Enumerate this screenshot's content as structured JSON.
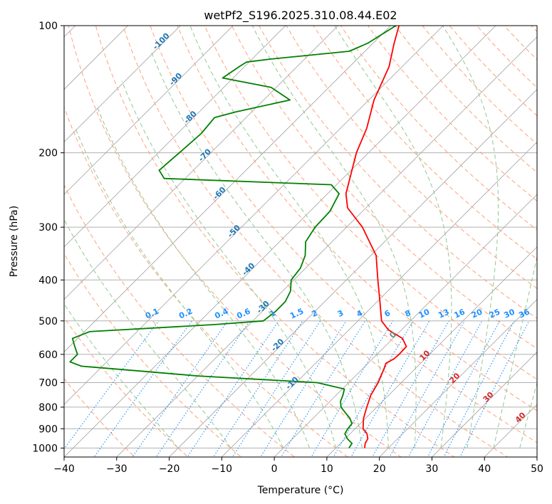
{
  "chart_data": {
    "type": "line",
    "title": "wetPf2_S196.2025.310.08.44.E02",
    "xlabel": "Temperature (°C)",
    "ylabel": "Pressure (hPa)",
    "xlim": [
      -40,
      50
    ],
    "ylim": [
      1050,
      100
    ],
    "y_scale": "log",
    "grid": true,
    "x_ticks": [
      -40,
      -30,
      -20,
      -10,
      0,
      10,
      20,
      30,
      40,
      50
    ],
    "y_ticks": [
      1000,
      900,
      800,
      700,
      600,
      500,
      400,
      300,
      200,
      100
    ],
    "skew": true,
    "colors": {
      "temperature": "#ff0000",
      "dewpoint": "#008000",
      "isotherm": "#aaaaaa",
      "dry_adiabat": "#ffa07a",
      "moist_adiabat": "#90c890",
      "mixing_ratio": "#1e90ff"
    },
    "series": [
      {
        "points": [
          [
            1000,
            15.5
          ],
          [
            975,
            14.7
          ],
          [
            950,
            14.3
          ],
          [
            925,
            13.2
          ],
          [
            900,
            11.5
          ],
          [
            850,
            9.6
          ],
          [
            800,
            8.1
          ],
          [
            750,
            6.6
          ],
          [
            700,
            5.6
          ],
          [
            650,
            4.1
          ],
          [
            630,
            3.4
          ],
          [
            615,
            4.1
          ],
          [
            600,
            4.2
          ],
          [
            575,
            4.1
          ],
          [
            550,
            1.8
          ],
          [
            525,
            -2.5
          ],
          [
            500,
            -5.5
          ],
          [
            450,
            -9.5
          ],
          [
            400,
            -14.0
          ],
          [
            350,
            -19.0
          ],
          [
            300,
            -27.0
          ],
          [
            270,
            -33.5
          ],
          [
            250,
            -36.5
          ],
          [
            200,
            -42.3
          ],
          [
            175,
            -45.0
          ],
          [
            150,
            -49.0
          ],
          [
            125,
            -52.5
          ],
          [
            110,
            -56.0
          ],
          [
            100,
            -58.4
          ]
        ]
      },
      {
        "points": [
          [
            1000,
            12.5
          ],
          [
            975,
            12.2
          ],
          [
            950,
            10.4
          ],
          [
            925,
            9.0
          ],
          [
            900,
            8.6
          ],
          [
            875,
            8.4
          ],
          [
            850,
            7.0
          ],
          [
            825,
            5.1
          ],
          [
            800,
            3.2
          ],
          [
            775,
            2.0
          ],
          [
            750,
            1.3
          ],
          [
            725,
            0.4
          ],
          [
            700,
            -6.0
          ],
          [
            675,
            -30.0
          ],
          [
            660,
            -40.0
          ],
          [
            640,
            -54.0
          ],
          [
            625,
            -57.0
          ],
          [
            600,
            -57.0
          ],
          [
            575,
            -59.0
          ],
          [
            550,
            -61.0
          ],
          [
            530,
            -59.0
          ],
          [
            510,
            -36.5
          ],
          [
            500,
            -28.0
          ],
          [
            475,
            -27.5
          ],
          [
            450,
            -27.5
          ],
          [
            425,
            -28.5
          ],
          [
            400,
            -30.5
          ],
          [
            375,
            -31.0
          ],
          [
            350,
            -32.5
          ],
          [
            325,
            -35.0
          ],
          [
            300,
            -36.0
          ],
          [
            275,
            -36.2
          ],
          [
            250,
            -37.8
          ],
          [
            238,
            -41.0
          ],
          [
            230,
            -74.0
          ],
          [
            220,
            -76.5
          ],
          [
            200,
            -76.0
          ],
          [
            180,
            -75.5
          ],
          [
            165,
            -76.0
          ],
          [
            160,
            -73.0
          ],
          [
            150,
            -65.0
          ],
          [
            140,
            -71.0
          ],
          [
            133,
            -82.0
          ],
          [
            125,
            -81.0
          ],
          [
            122,
            -80.5
          ],
          [
            120,
            -76.5
          ],
          [
            115,
            -63.0
          ],
          [
            110,
            -61.0
          ],
          [
            100,
            -59.0
          ]
        ]
      }
    ],
    "dry_adiabat_labels": [
      "-100",
      "-90",
      "-80",
      "-70",
      "-60",
      "-50",
      "-40",
      "-30",
      "-20",
      "-10"
    ],
    "moist_adiabat_labels": [
      "0",
      "10",
      "20",
      "30",
      "40"
    ],
    "mixing_ratio_labels": [
      "0.1",
      "0.2",
      "0.4",
      "0.6",
      "1",
      "1.5",
      "2",
      "3",
      "4",
      "6",
      "8",
      "10",
      "13",
      "16",
      "20",
      "25",
      "30",
      "36"
    ]
  }
}
